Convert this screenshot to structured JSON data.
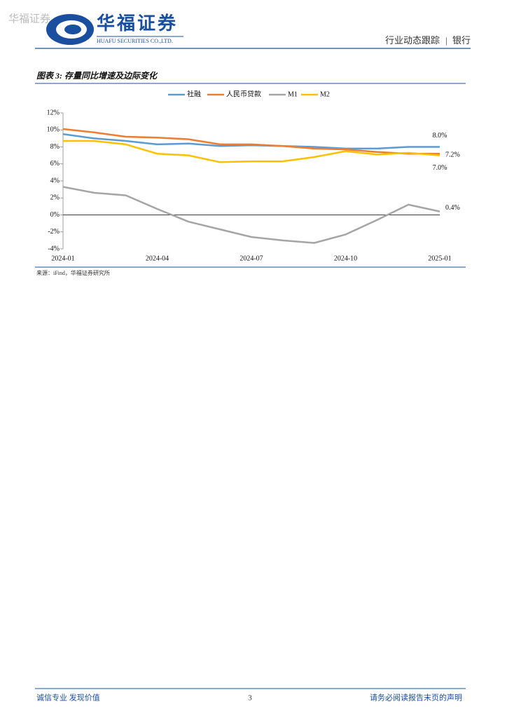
{
  "header": {
    "watermark": "华福证券",
    "logo_cn": "华福证券",
    "logo_en": "HUAFU SECURITIES CO.,LTD.",
    "report_type": "行业动态跟踪",
    "sector": "银行"
  },
  "figure_title": "图表 3:  存量同比增速及边际变化",
  "chart_data": {
    "type": "line",
    "categories": [
      "2024-01",
      null,
      null,
      "2024-04",
      null,
      null,
      "2024-07",
      null,
      null,
      "2024-10",
      null,
      null,
      "2025-01"
    ],
    "series": [
      {
        "name": "社融",
        "color": "#5b9bd5",
        "values": [
          9.5,
          9.0,
          8.7,
          8.3,
          8.4,
          8.1,
          8.2,
          8.1,
          8.0,
          7.8,
          7.8,
          8.0,
          8.0
        ],
        "value_labels": [
          null,
          null,
          null,
          null,
          null,
          null,
          null,
          null,
          null,
          null,
          null,
          null,
          "8.0%"
        ]
      },
      {
        "name": "人民币贷款",
        "color": "#ed7d31",
        "values": [
          10.1,
          9.7,
          9.2,
          9.1,
          8.9,
          8.3,
          8.3,
          8.1,
          7.8,
          7.7,
          7.4,
          7.2,
          7.2
        ],
        "value_labels": [
          null,
          null,
          null,
          null,
          null,
          null,
          null,
          null,
          null,
          null,
          null,
          null,
          "7.2%"
        ]
      },
      {
        "name": "M1",
        "color": "#a5a5a5",
        "values": [
          3.3,
          2.6,
          2.3,
          0.7,
          -0.8,
          -1.7,
          -2.6,
          -3.0,
          -3.3,
          -2.3,
          -0.6,
          1.2,
          0.4
        ],
        "value_labels": [
          null,
          null,
          null,
          null,
          null,
          null,
          null,
          null,
          null,
          null,
          null,
          null,
          "0.4%"
        ]
      },
      {
        "name": "M2",
        "color": "#ffc000",
        "values": [
          8.7,
          8.7,
          8.3,
          7.2,
          7.0,
          6.2,
          6.3,
          6.3,
          6.8,
          7.5,
          7.1,
          7.3,
          7.0
        ],
        "value_labels": [
          null,
          null,
          null,
          null,
          null,
          null,
          null,
          null,
          null,
          null,
          null,
          null,
          "7.0%"
        ]
      }
    ],
    "ylim": [
      -4,
      12
    ],
    "yticks": [
      {
        "value": -4,
        "label": "-4%"
      },
      {
        "value": -2,
        "label": "-2%"
      },
      {
        "value": 0,
        "label": "0%"
      },
      {
        "value": 2,
        "label": "2%"
      },
      {
        "value": 4,
        "label": "4%"
      },
      {
        "value": 6,
        "label": "6%"
      },
      {
        "value": 8,
        "label": "8%"
      },
      {
        "value": 10,
        "label": "10%"
      },
      {
        "value": 12,
        "label": "12%"
      }
    ],
    "grid": false,
    "legend": "top"
  },
  "source": "来源：iFind，华福证券研究所",
  "footer": {
    "left": "诚信专业  发现价值",
    "page": "3",
    "right": "请务必阅读报告末页的声明"
  }
}
